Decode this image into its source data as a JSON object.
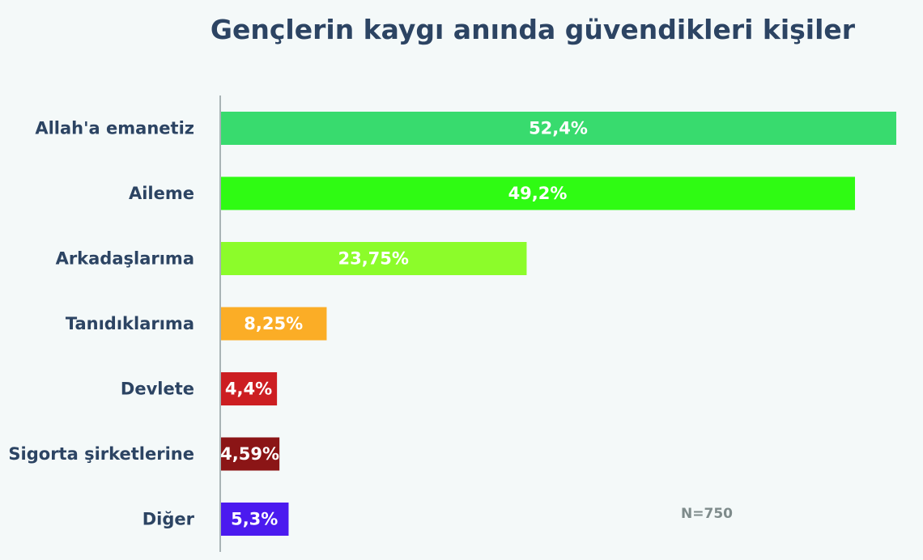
{
  "chart_data": {
    "type": "bar",
    "orientation": "horizontal",
    "title": "Gençlerin kaygı anında güvendikleri kişiler",
    "categories": [
      "Allah'a emanetiz",
      "Aileme",
      "Arkadaşlarıma",
      "Tanıdıklarıma",
      "Devlete",
      "Sigorta şirketlerine",
      "Diğer"
    ],
    "values": [
      52.4,
      49.2,
      23.75,
      8.25,
      4.4,
      4.59,
      5.3
    ],
    "value_labels": [
      "52,4%",
      "49,2%",
      "23,75%",
      "8,25%",
      "4,4%",
      "4,59%",
      "5,3%"
    ],
    "colors": [
      "#38db6e",
      "#2ffb13",
      "#8cfc2a",
      "#fbad26",
      "#cc1e22",
      "#8b1516",
      "#4b1aef"
    ],
    "xlim": [
      0,
      52.4
    ],
    "grid": false,
    "note": "N=750"
  }
}
